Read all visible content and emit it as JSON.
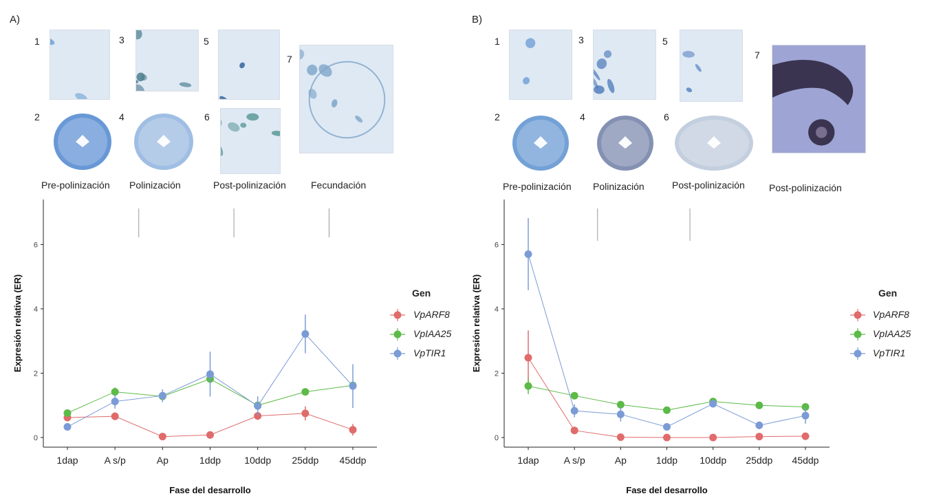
{
  "panels": [
    {
      "label": "A)",
      "images": [
        {
          "num": "1",
          "color": "#6b9fd1",
          "style": "tissue"
        },
        {
          "num": "2",
          "color": "#4d86cf",
          "style": "cross"
        },
        {
          "num": "3",
          "color": "#4c7d8e",
          "style": "tissue"
        },
        {
          "num": "4",
          "color": "#8fb3de",
          "style": "cross"
        },
        {
          "num": "5",
          "color": "#3b6aa0",
          "style": "blobs"
        },
        {
          "num": "6",
          "color": "#5f9c9c",
          "style": "tissue"
        },
        {
          "num": "7",
          "color": "#7ea5c8",
          "style": "large"
        }
      ],
      "stages": [
        "Pre-polinización",
        "Polinización",
        "Post-polinización",
        "Fecundación"
      ]
    },
    {
      "label": "B)",
      "images": [
        {
          "num": "1",
          "color": "#6f9ed6",
          "style": "tissue"
        },
        {
          "num": "2",
          "color": "#5a91cf",
          "style": "cross"
        },
        {
          "num": "3",
          "color": "#4a77b8",
          "style": "tissue"
        },
        {
          "num": "4",
          "color": "#6f7ea6",
          "style": "cross"
        },
        {
          "num": "5",
          "color": "#5e87c4",
          "style": "tissue"
        },
        {
          "num": "6",
          "color": "#b9c7d8",
          "style": "cross"
        },
        {
          "num": "7",
          "color": "#8f96c7",
          "style": "purple"
        }
      ],
      "stages": [
        "Pre-polinización",
        "Polinización",
        "Post-polinización",
        "Post-polinización"
      ]
    }
  ],
  "chart_data": [
    {
      "type": "line",
      "panel": "A)",
      "xlabel": "Fase del desarrollo",
      "ylabel": "Expresión relativa (ER)",
      "ylim": [
        -0.3,
        7.4
      ],
      "yticks": [
        0,
        2,
        4,
        6
      ],
      "categories": [
        "1dap",
        "A s/p",
        "Ap",
        "1ddp",
        "10ddp",
        "25ddp",
        "45ddp"
      ],
      "stage_dividers_after_index": [
        1,
        3,
        5
      ],
      "legend_title": "Gen",
      "series": [
        {
          "name": "VpARF8",
          "color": "#e06b6b",
          "values": [
            0.62,
            0.66,
            0.03,
            0.08,
            0.67,
            0.75,
            0.24
          ],
          "errors": [
            0.08,
            0.12,
            0.02,
            0.05,
            0.12,
            0.22,
            0.18
          ]
        },
        {
          "name": "VpIAA25",
          "color": "#5cba47",
          "values": [
            0.76,
            1.42,
            1.28,
            1.82,
            1.0,
            1.42,
            1.62
          ],
          "errors": [
            0.06,
            0.14,
            0.1,
            0.18,
            0.1,
            0.08,
            0.1
          ]
        },
        {
          "name": "VpTIR1",
          "color": "#7b9bd6",
          "values": [
            0.33,
            1.12,
            1.3,
            1.97,
            0.98,
            3.22,
            1.6
          ],
          "errors": [
            0.08,
            0.22,
            0.2,
            0.7,
            0.3,
            0.6,
            0.68
          ]
        }
      ]
    },
    {
      "type": "line",
      "panel": "B)",
      "xlabel": "Fase del desarrollo",
      "ylabel": "Expresión relativa (ER)",
      "ylim": [
        -0.3,
        7.4
      ],
      "yticks": [
        0,
        2,
        4,
        6
      ],
      "categories": [
        "1dap",
        "A s/p",
        "Ap",
        "1ddp",
        "10ddp",
        "25ddp",
        "45ddp"
      ],
      "stage_dividers_after_index": [
        1,
        3
      ],
      "legend_title": "Gen",
      "series": [
        {
          "name": "VpARF8",
          "color": "#e06b6b",
          "values": [
            2.48,
            0.22,
            0.01,
            0.0,
            0.0,
            0.03,
            0.04
          ],
          "errors": [
            0.85,
            0.05,
            0.08,
            0.04,
            0.02,
            0.03,
            0.03
          ]
        },
        {
          "name": "VpIAA25",
          "color": "#5cba47",
          "values": [
            1.6,
            1.3,
            1.02,
            0.85,
            1.12,
            1.0,
            0.95
          ],
          "errors": [
            0.25,
            0.08,
            0.08,
            0.06,
            0.08,
            0.08,
            0.08
          ]
        },
        {
          "name": "VpTIR1",
          "color": "#7b9bd6",
          "values": [
            5.7,
            0.83,
            0.72,
            0.33,
            1.05,
            0.38,
            0.68
          ],
          "errors": [
            1.12,
            0.2,
            0.22,
            0.1,
            0.12,
            0.12,
            0.25
          ]
        }
      ]
    }
  ]
}
